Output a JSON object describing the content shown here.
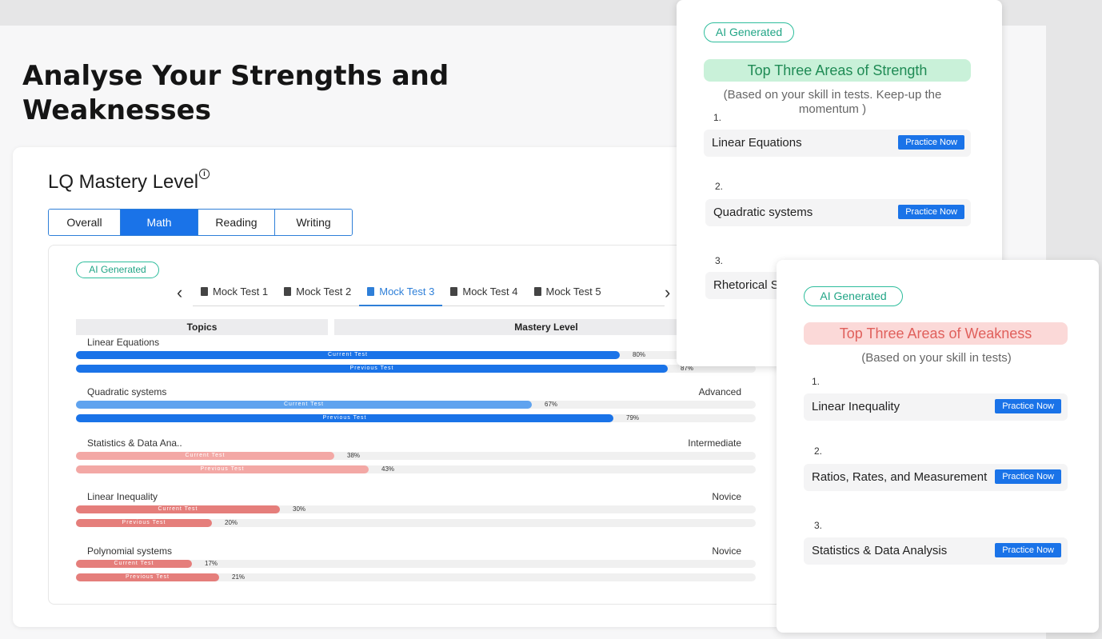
{
  "headline": "Analyse Your Strengths and Weaknesses",
  "mastery": {
    "title": "LQ Mastery Level",
    "info_icon": "i",
    "tabs": [
      "Overall",
      "Math",
      "Reading",
      "Writing"
    ],
    "active_tab": "Math"
  },
  "inner": {
    "badge": "AI Generated",
    "mock_tests": [
      "Mock Test 1",
      "Mock Test 2",
      "Mock Test 3",
      "Mock Test 4",
      "Mock Test 5"
    ],
    "active_mock": "Mock Test 3",
    "columns": {
      "topics": "Topics",
      "mastery": "Mastery Level"
    },
    "bar_labels": {
      "current": "Current Test",
      "previous": "Previous Test"
    },
    "topics": [
      {
        "name": "Linear Equations",
        "level": "",
        "current_pct": "80%",
        "previous_pct": "87%",
        "current": 80,
        "previous": 87,
        "current_color": "#1a73e8",
        "previous_color": "#1a73e8"
      },
      {
        "name": "Quadratic systems",
        "level": "Advanced",
        "current_pct": "67%",
        "previous_pct": "79%",
        "current": 67,
        "previous": 79,
        "current_color": "#5fa3ef",
        "previous_color": "#1a73e8"
      },
      {
        "name": "Statistics & Data Ana..",
        "level": "Intermediate",
        "current_pct": "38%",
        "previous_pct": "43%",
        "current": 38,
        "previous": 43,
        "current_color": "#f3a8a5",
        "previous_color": "#f3a8a5"
      },
      {
        "name": "Linear Inequality",
        "level": "Novice",
        "current_pct": "30%",
        "previous_pct": "20%",
        "current": 30,
        "previous": 20,
        "current_color": "#e57e7b",
        "previous_color": "#e57e7b"
      },
      {
        "name": "Polynomial systems",
        "level": "Novice",
        "current_pct": "17%",
        "previous_pct": "21%",
        "current": 17,
        "previous": 21,
        "current_color": "#e57e7b",
        "previous_color": "#e57e7b"
      }
    ]
  },
  "strength": {
    "badge": "AI Generated",
    "title": "Top Three Areas of Strength",
    "subtitle": "(Based on your skill in tests. Keep-up the momentum )",
    "items": [
      {
        "num": "1.",
        "label": "Linear Equations",
        "button": "Practice Now"
      },
      {
        "num": "2.",
        "label": "Quadratic systems",
        "button": "Practice Now"
      },
      {
        "num": "3.",
        "label": "Rhetorical S",
        "button": ""
      }
    ]
  },
  "weakness": {
    "badge": "AI Generated",
    "title": "Top Three Areas of Weakness",
    "subtitle": "(Based on your skill in tests)",
    "items": [
      {
        "num": "1.",
        "label": "Linear Inequality",
        "button": "Practice Now"
      },
      {
        "num": "2.",
        "label": "Ratios, Rates, and Measurement",
        "button": "Practice Now"
      },
      {
        "num": "3.",
        "label": "Statistics & Data Analysis",
        "button": "Practice Now"
      }
    ]
  },
  "colors": {
    "accent": "#1a73e8",
    "strength_title_bg": "#c9f1d9",
    "strength_title_fg": "#1f8b55",
    "weakness_title_bg": "#fbd9d8",
    "weakness_title_fg": "#e0605c",
    "badge": "#2dbd9c"
  }
}
